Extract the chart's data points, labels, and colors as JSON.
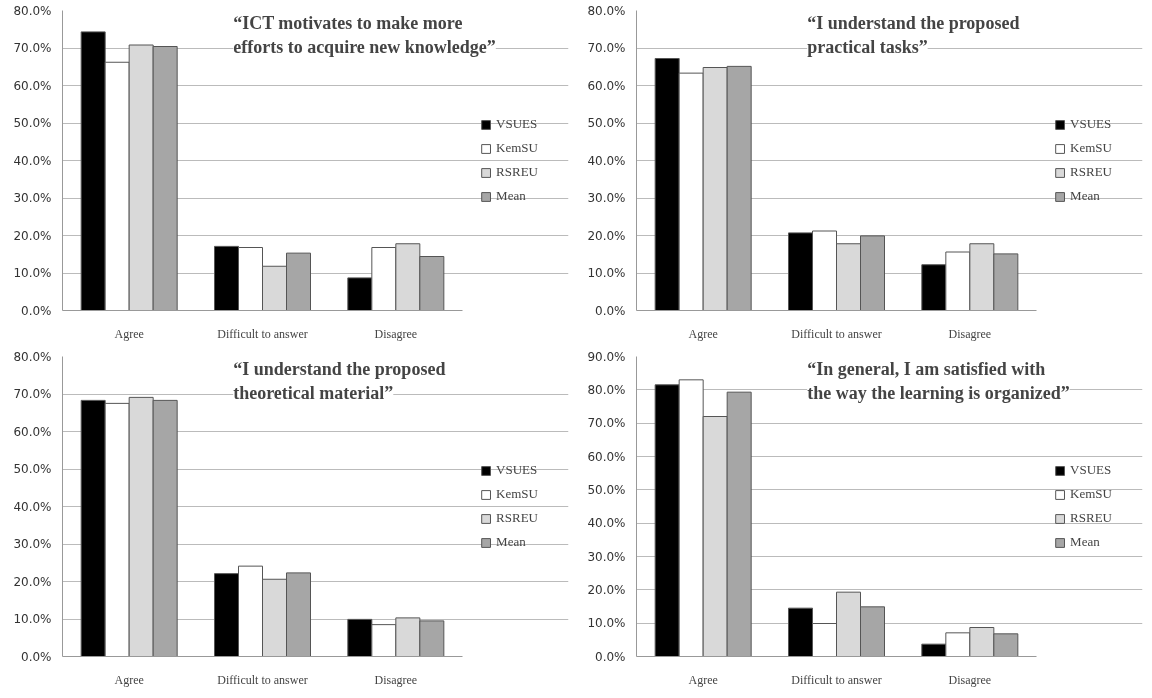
{
  "chart_data": [
    {
      "type": "bar",
      "title": "“ICT motivates to make more efforts to acquire new knowledge”",
      "categories": [
        "Agree",
        "Difficult to answer",
        "Disagree"
      ],
      "ylim": [
        0,
        80
      ],
      "yticks": [
        {
          "value": 0,
          "label": "0.0%"
        },
        {
          "value": 10,
          "label": "10.0%"
        },
        {
          "value": 20,
          "label": "20.0%"
        },
        {
          "value": 30,
          "label": "30.0%"
        },
        {
          "value": 40,
          "label": "40.0%"
        },
        {
          "value": 50,
          "label": "50.0%"
        },
        {
          "value": 60,
          "label": "60.0%"
        },
        {
          "value": 70,
          "label": "70.0%"
        },
        {
          "value": 80,
          "label": "80.0%"
        }
      ],
      "grid": "y",
      "legend": "right",
      "series": [
        {
          "name": "VSUES",
          "color": "#000000",
          "values": [
            74.3,
            17.1,
            8.7
          ]
        },
        {
          "name": "KemSU",
          "color": "#ffffff",
          "values": [
            66.2,
            16.8,
            16.8
          ]
        },
        {
          "name": "RSREU",
          "color": "#d9d9d9",
          "values": [
            70.8,
            11.8,
            17.8
          ]
        },
        {
          "name": "Mean",
          "color": "#a6a6a6",
          "values": [
            70.4,
            15.3,
            14.4
          ]
        }
      ]
    },
    {
      "type": "bar",
      "title": "“I understand the proposed practical tasks”",
      "categories": [
        "Agree",
        "Difficult to answer",
        "Disagree"
      ],
      "ylim": [
        0,
        80
      ],
      "yticks": [
        {
          "value": 0,
          "label": "0.0%"
        },
        {
          "value": 10,
          "label": "10.0%"
        },
        {
          "value": 20,
          "label": "20.0%"
        },
        {
          "value": 30,
          "label": "30.0%"
        },
        {
          "value": 40,
          "label": "40.0%"
        },
        {
          "value": 50,
          "label": "50.0%"
        },
        {
          "value": 60,
          "label": "60.0%"
        },
        {
          "value": 70,
          "label": "70.0%"
        },
        {
          "value": 80,
          "label": "80.0%"
        }
      ],
      "grid": "y",
      "legend": "right",
      "series": [
        {
          "name": "VSUES",
          "color": "#000000",
          "values": [
            67.2,
            20.7,
            12.2
          ]
        },
        {
          "name": "KemSU",
          "color": "#ffffff",
          "values": [
            63.3,
            21.2,
            15.6
          ]
        },
        {
          "name": "RSREU",
          "color": "#d9d9d9",
          "values": [
            64.8,
            17.8,
            17.8
          ]
        },
        {
          "name": "Mean",
          "color": "#a6a6a6",
          "values": [
            65.1,
            19.9,
            15.1
          ]
        }
      ]
    },
    {
      "type": "bar",
      "title": "“I understand the proposed theoretical material”",
      "categories": [
        "Agree",
        "Difficult to answer",
        "Disagree"
      ],
      "ylim": [
        0,
        80
      ],
      "yticks": [
        {
          "value": 0,
          "label": "0.0%"
        },
        {
          "value": 10,
          "label": "10.0%"
        },
        {
          "value": 20,
          "label": "20.0%"
        },
        {
          "value": 30,
          "label": "30.0%"
        },
        {
          "value": 40,
          "label": "40.0%"
        },
        {
          "value": 50,
          "label": "50.0%"
        },
        {
          "value": 60,
          "label": "60.0%"
        },
        {
          "value": 70,
          "label": "70.0%"
        },
        {
          "value": 80,
          "label": "80.0%"
        }
      ],
      "grid": "y",
      "legend": "right",
      "series": [
        {
          "name": "VSUES",
          "color": "#000000",
          "values": [
            68.3,
            22.1,
            9.9
          ]
        },
        {
          "name": "KemSU",
          "color": "#ffffff",
          "values": [
            67.5,
            24.1,
            8.5
          ]
        },
        {
          "name": "RSREU",
          "color": "#d9d9d9",
          "values": [
            69.1,
            20.6,
            10.3
          ]
        },
        {
          "name": "Mean",
          "color": "#a6a6a6",
          "values": [
            68.3,
            22.3,
            9.5
          ]
        }
      ]
    },
    {
      "type": "bar",
      "title": "“In general, I am satisfied with the way the learning is organized”",
      "categories": [
        "Agree",
        "Difficult to answer",
        "Disagree"
      ],
      "ylim": [
        0,
        90
      ],
      "yticks": [
        {
          "value": 0,
          "label": "0.0%"
        },
        {
          "value": 10,
          "label": "10.0%"
        },
        {
          "value": 20,
          "label": "20.0%"
        },
        {
          "value": 30,
          "label": "30.0%"
        },
        {
          "value": 40,
          "label": "40.0%"
        },
        {
          "value": 50,
          "label": "50.0%"
        },
        {
          "value": 60,
          "label": "60.0%"
        },
        {
          "value": 70,
          "label": "70.0%"
        },
        {
          "value": 80,
          "label": "80.0%"
        },
        {
          "value": 90,
          "label": "90.0%"
        }
      ],
      "grid": "y",
      "legend": "right",
      "series": [
        {
          "name": "VSUES",
          "color": "#000000",
          "values": [
            81.5,
            14.5,
            3.7
          ]
        },
        {
          "name": "KemSU",
          "color": "#ffffff",
          "values": [
            83.0,
            9.9,
            7.1
          ]
        },
        {
          "name": "RSREU",
          "color": "#d9d9d9",
          "values": [
            72.0,
            19.3,
            8.7
          ]
        },
        {
          "name": "Mean",
          "color": "#a6a6a6",
          "values": [
            79.3,
            14.9,
            6.8
          ]
        }
      ]
    }
  ]
}
